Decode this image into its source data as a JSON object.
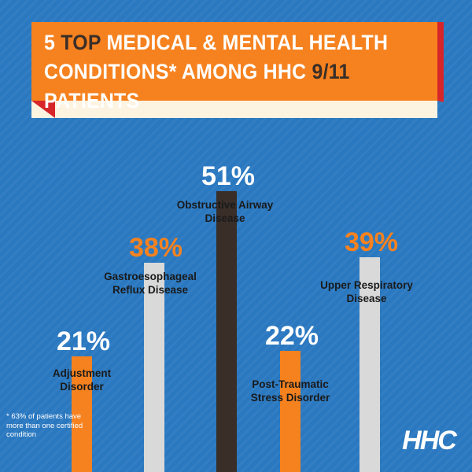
{
  "banner": {
    "title_line1_parts": [
      {
        "text": "5 ",
        "accent": false
      },
      {
        "text": "TOP",
        "accent": true
      },
      {
        "text": " MEDICAL & MENTAL HEALTH",
        "accent": false
      }
    ],
    "title_line2_parts": [
      {
        "text": "CONDITIONS* AMONG HHC ",
        "accent": false
      },
      {
        "text": "9/11",
        "accent": true
      },
      {
        "text": " PATIENTS",
        "accent": false
      }
    ]
  },
  "colors": {
    "background": "#2a78c0",
    "banner_orange": "#f6821f",
    "banner_fold_red": "#d7262a",
    "banner_ribbon": "#fdf3e1",
    "bar_orange": "#f6821f",
    "bar_gray": "#d9d9d9",
    "bar_dark": "#3a2e28",
    "pct_white": "#ffffff",
    "pct_orange": "#f6821f"
  },
  "chart_data": {
    "type": "bar",
    "ylim": [
      0,
      100
    ],
    "unit": "%",
    "categories": [
      "Adjustment Disorder",
      "Gastroesophageal Reflux Disease",
      "Obstructive Airway Disease",
      "Post-Traumatic Stress Disorder",
      "Upper Respiratory Disease"
    ],
    "values": [
      21,
      38,
      51,
      22,
      39
    ],
    "value_labels": [
      "21%",
      "38%",
      "51%",
      "22%",
      "39%"
    ],
    "category_label_lines": [
      [
        "Adjustment",
        "Disorder"
      ],
      [
        "Gastroesophageal",
        "Reflux Disease"
      ],
      [
        "Obstructive Airway",
        "Disease"
      ],
      [
        "Post-Traumatic",
        "Stress Disorder"
      ],
      [
        "Upper Respiratory",
        "Disease"
      ]
    ],
    "bar_colors": [
      "#f6821f",
      "#d9d9d9",
      "#3a2e28",
      "#f6821f",
      "#d9d9d9"
    ],
    "value_label_colors": [
      "#ffffff",
      "#f6821f",
      "#ffffff",
      "#ffffff",
      "#f6821f"
    ]
  },
  "footnote": "* 63% of patients have more than one certified condition",
  "logo": "HHC"
}
